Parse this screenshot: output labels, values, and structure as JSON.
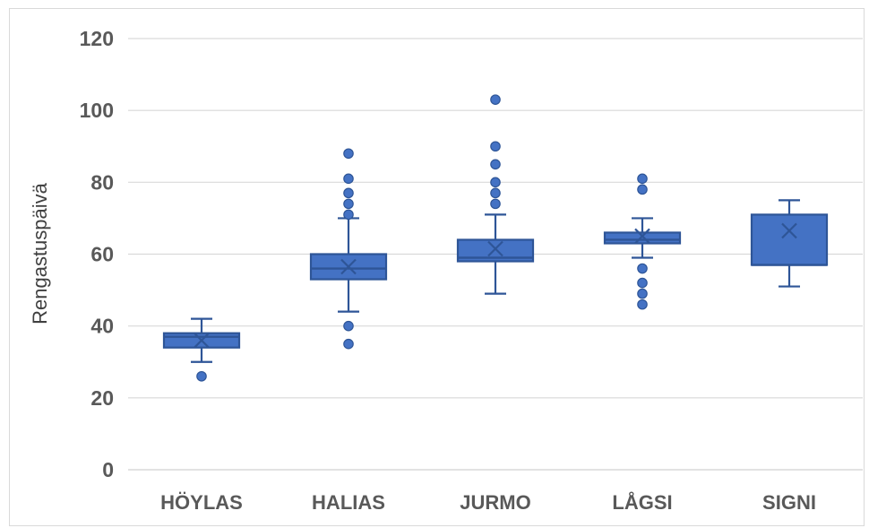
{
  "chart_data": {
    "type": "box",
    "title": "",
    "xlabel": "",
    "ylabel": "Rengastuspäivä",
    "ylim": [
      0,
      120
    ],
    "yticks": [
      0,
      20,
      40,
      60,
      80,
      100,
      120
    ],
    "grid": true,
    "legend": "none",
    "color": "#4472c4",
    "edge_color": "#2e5597",
    "categories": [
      "HÖYLAS",
      "HALIAS",
      "JURMO",
      "LÅGSI",
      "SIGNI"
    ],
    "boxes": [
      {
        "category": "HÖYLAS",
        "whisker_low": 30,
        "q1": 34,
        "median": 37,
        "q3": 38,
        "whisker_high": 42,
        "mean": 36,
        "outliers": [
          26
        ]
      },
      {
        "category": "HALIAS",
        "whisker_low": 44,
        "q1": 53,
        "median": 56,
        "q3": 60,
        "whisker_high": 70,
        "mean": 56.5,
        "outliers": [
          35,
          40,
          71,
          74,
          77,
          81,
          88
        ]
      },
      {
        "category": "JURMO",
        "whisker_low": 49,
        "q1": 58,
        "median": 59,
        "q3": 64,
        "whisker_high": 71,
        "mean": 61.5,
        "outliers": [
          74,
          77,
          80,
          85,
          90,
          103
        ]
      },
      {
        "category": "LÅGSI",
        "whisker_low": 59,
        "q1": 63,
        "median": 64,
        "q3": 66,
        "whisker_high": 70,
        "mean": 65,
        "outliers": [
          46,
          49,
          52,
          56,
          78,
          81
        ]
      },
      {
        "category": "SIGNI",
        "whisker_low": 51,
        "q1": 57,
        "median": 57,
        "q3": 71,
        "whisker_high": 75,
        "mean": 66.5,
        "outliers": []
      }
    ]
  }
}
